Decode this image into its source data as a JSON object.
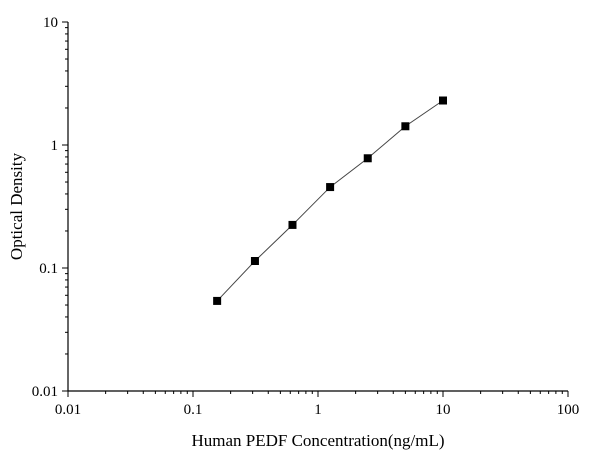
{
  "chart_data": {
    "type": "scatter",
    "title": "",
    "xlabel": "Human PEDF Concentration(ng/mL)",
    "ylabel": "Optical Density",
    "xscale": "log",
    "yscale": "log",
    "xlim": [
      0.01,
      100
    ],
    "ylim": [
      0.01,
      10
    ],
    "x_ticks": [
      "0.01",
      "0.1",
      "1",
      "10",
      "100"
    ],
    "y_ticks": [
      "0.01",
      "0.1",
      "1",
      "10"
    ],
    "grid": false,
    "legend": "none",
    "series": [
      {
        "marker": "square",
        "line": true,
        "color": "#000000",
        "x": [
          0.156,
          0.313,
          0.625,
          1.25,
          2.5,
          5,
          10
        ],
        "y": [
          0.054,
          0.114,
          0.224,
          0.455,
          0.78,
          1.42,
          2.3
        ]
      }
    ]
  }
}
